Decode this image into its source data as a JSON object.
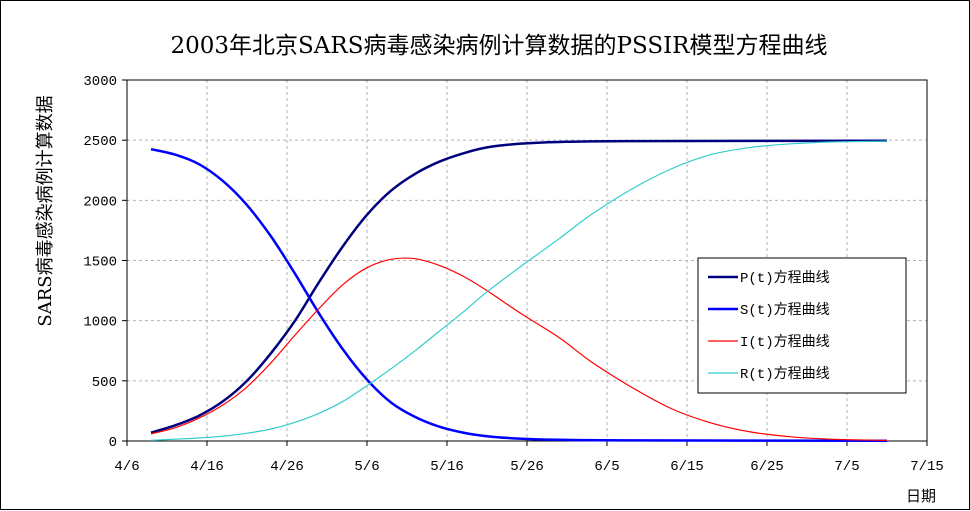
{
  "chart_data": {
    "type": "line",
    "title": "2003年北京SARS病毒感染病例计算数据的PSSIR模型方程曲线",
    "ylabel": "SARS病毒感染病例计算数据",
    "xlabel": "日期",
    "ylim": [
      0,
      3000
    ],
    "yticks": [
      0,
      500,
      1000,
      1500,
      2000,
      2500,
      3000
    ],
    "xlim": [
      "4/6",
      "7/15"
    ],
    "xticks": [
      "4/6",
      "4/16",
      "4/26",
      "5/6",
      "5/16",
      "5/26",
      "6/5",
      "6/15",
      "6/25",
      "7/5",
      "7/15"
    ],
    "grid": true,
    "legend_position": "right",
    "series": [
      {
        "name": "P(t)方程曲线",
        "color": "#00007f",
        "points": [
          [
            "4/9",
            70
          ],
          [
            "4/12",
            130
          ],
          [
            "4/15",
            210
          ],
          [
            "4/18",
            330
          ],
          [
            "4/21",
            500
          ],
          [
            "4/24",
            730
          ],
          [
            "4/27",
            1000
          ],
          [
            "4/30",
            1320
          ],
          [
            "5/3",
            1620
          ],
          [
            "5/6",
            1880
          ],
          [
            "5/9",
            2080
          ],
          [
            "5/12",
            2220
          ],
          [
            "5/15",
            2320
          ],
          [
            "5/18",
            2390
          ],
          [
            "5/21",
            2440
          ],
          [
            "5/25",
            2470
          ],
          [
            "5/30",
            2485
          ],
          [
            "6/8",
            2492
          ],
          [
            "7/10",
            2495
          ]
        ]
      },
      {
        "name": "S(t)方程曲线",
        "color": "#0000ff",
        "points": [
          [
            "4/9",
            2425
          ],
          [
            "4/12",
            2380
          ],
          [
            "4/15",
            2300
          ],
          [
            "4/18",
            2160
          ],
          [
            "4/21",
            1960
          ],
          [
            "4/24",
            1700
          ],
          [
            "4/27",
            1390
          ],
          [
            "4/30",
            1060
          ],
          [
            "5/3",
            760
          ],
          [
            "5/6",
            510
          ],
          [
            "5/9",
            320
          ],
          [
            "5/12",
            200
          ],
          [
            "5/15",
            120
          ],
          [
            "5/18",
            70
          ],
          [
            "5/21",
            40
          ],
          [
            "5/25",
            20
          ],
          [
            "5/30",
            10
          ],
          [
            "6/8",
            5
          ],
          [
            "7/10",
            2
          ]
        ]
      },
      {
        "name": "I(t)方程曲线",
        "color": "#ff0000",
        "points": [
          [
            "4/9",
            60
          ],
          [
            "4/12",
            110
          ],
          [
            "4/15",
            190
          ],
          [
            "4/18",
            300
          ],
          [
            "4/21",
            450
          ],
          [
            "4/24",
            650
          ],
          [
            "4/27",
            880
          ],
          [
            "4/30",
            1100
          ],
          [
            "5/3",
            1300
          ],
          [
            "5/6",
            1440
          ],
          [
            "5/9",
            1510
          ],
          [
            "5/12",
            1515
          ],
          [
            "5/15",
            1460
          ],
          [
            "5/18",
            1370
          ],
          [
            "5/21",
            1250
          ],
          [
            "5/25",
            1070
          ],
          [
            "5/30",
            860
          ],
          [
            "6/3",
            660
          ],
          [
            "6/8",
            450
          ],
          [
            "6/13",
            270
          ],
          [
            "6/18",
            150
          ],
          [
            "6/23",
            75
          ],
          [
            "6/28",
            35
          ],
          [
            "7/3",
            15
          ],
          [
            "7/10",
            5
          ]
        ]
      },
      {
        "name": "R(t)方程曲线",
        "color": "#33cccc",
        "points": [
          [
            "4/9",
            5
          ],
          [
            "4/12",
            15
          ],
          [
            "4/15",
            25
          ],
          [
            "4/18",
            40
          ],
          [
            "4/21",
            65
          ],
          [
            "4/24",
            100
          ],
          [
            "4/27",
            155
          ],
          [
            "4/30",
            230
          ],
          [
            "5/3",
            330
          ],
          [
            "5/6",
            460
          ],
          [
            "5/9",
            600
          ],
          [
            "5/12",
            750
          ],
          [
            "5/15",
            910
          ],
          [
            "5/18",
            1070
          ],
          [
            "5/21",
            1240
          ],
          [
            "5/25",
            1440
          ],
          [
            "5/30",
            1680
          ],
          [
            "6/3",
            1880
          ],
          [
            "6/8",
            2090
          ],
          [
            "6/13",
            2260
          ],
          [
            "6/18",
            2380
          ],
          [
            "6/23",
            2440
          ],
          [
            "6/28",
            2470
          ],
          [
            "7/3",
            2485
          ],
          [
            "7/10",
            2492
          ]
        ]
      }
    ]
  }
}
